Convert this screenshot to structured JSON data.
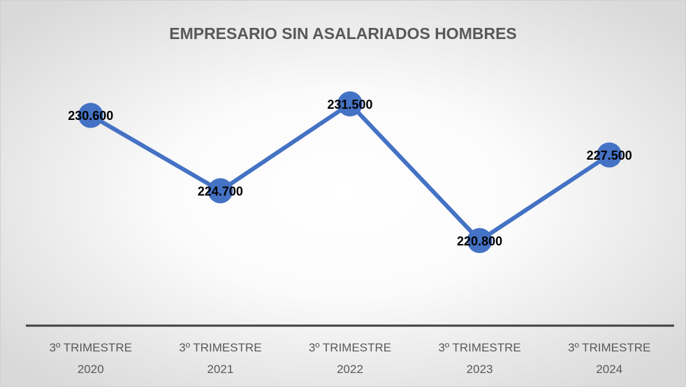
{
  "chart_data": {
    "type": "line",
    "title": "EMPRESARIO SIN ASALARIADOS HOMBRES",
    "categories": [
      "3º TRIMESTRE 2020",
      "3º TRIMESTRE 2021",
      "3º TRIMESTRE 2022",
      "3º TRIMESTRE 2023",
      "3º TRIMESTRE 2024"
    ],
    "series": [
      {
        "name": "EMPRESARIO SIN ASALARIADOS HOMBRES",
        "color": "#4472c4",
        "values": [
          230600,
          224700,
          231500,
          220800,
          227500
        ],
        "value_labels": [
          "230.600",
          "224.700",
          "231.500",
          "220.800",
          "227.500"
        ]
      }
    ]
  }
}
